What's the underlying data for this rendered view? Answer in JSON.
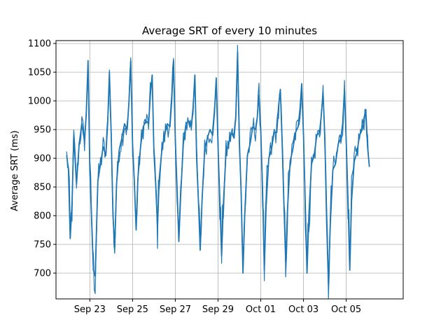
{
  "chart_data": {
    "type": "line",
    "title": "Average SRT of every 10 minutes",
    "xlabel": "",
    "ylabel": "Average SRT (ms)",
    "x_type": "date",
    "xlim": [
      "2023-09-21T10:00",
      "2023-10-07T16:00"
    ],
    "ylim": [
      655,
      1105
    ],
    "x_ticks": [
      {
        "date": "2023-09-23",
        "label": "Sep 23"
      },
      {
        "date": "2023-09-25",
        "label": "Sep 25"
      },
      {
        "date": "2023-09-27",
        "label": "Sep 27"
      },
      {
        "date": "2023-09-29",
        "label": "Sep 29"
      },
      {
        "date": "2023-10-01",
        "label": "Oct 01"
      },
      {
        "date": "2023-10-03",
        "label": "Oct 03"
      },
      {
        "date": "2023-10-05",
        "label": "Oct 05"
      }
    ],
    "y_ticks": [
      700,
      750,
      800,
      850,
      900,
      950,
      1000,
      1050,
      1100
    ],
    "grid": true,
    "series_color": "#1f77b4",
    "series": [
      {
        "x": [
          "2023-09-21T22:00",
          "2023-09-22T00:00",
          "2023-09-22T02:00",
          "2023-09-22T04:00",
          "2023-09-22T06:00",
          "2023-09-22T09:00",
          "2023-09-22T12:00",
          "2023-09-22T15:00",
          "2023-09-22T18:00",
          "2023-09-22T20:00",
          "2023-09-22T22:00",
          "2023-09-23T00:00",
          "2023-09-23T02:00",
          "2023-09-23T04:00",
          "2023-09-23T06:00",
          "2023-09-23T09:00",
          "2023-09-23T12:00",
          "2023-09-23T15:00",
          "2023-09-23T18:00",
          "2023-09-23T20:00",
          "2023-09-23T22:00",
          "2023-09-24T00:00",
          "2023-09-24T02:00",
          "2023-09-24T04:00",
          "2023-09-24T06:00",
          "2023-09-24T09:00",
          "2023-09-24T12:00",
          "2023-09-24T15:00",
          "2023-09-24T18:00",
          "2023-09-24T20:00",
          "2023-09-24T22:00",
          "2023-09-25T00:00",
          "2023-09-25T02:00",
          "2023-09-25T04:00",
          "2023-09-25T06:00",
          "2023-09-25T09:00",
          "2023-09-25T12:00",
          "2023-09-25T15:00",
          "2023-09-25T18:00",
          "2023-09-25T20:00",
          "2023-09-25T22:00",
          "2023-09-26T00:00",
          "2023-09-26T02:00",
          "2023-09-26T04:00",
          "2023-09-26T06:00",
          "2023-09-26T09:00",
          "2023-09-26T12:00",
          "2023-09-26T15:00",
          "2023-09-26T18:00",
          "2023-09-26T20:00",
          "2023-09-26T22:00",
          "2023-09-27T00:00",
          "2023-09-27T02:00",
          "2023-09-27T04:00",
          "2023-09-27T06:00",
          "2023-09-27T09:00",
          "2023-09-27T12:00",
          "2023-09-27T15:00",
          "2023-09-27T18:00",
          "2023-09-27T20:00",
          "2023-09-27T22:00",
          "2023-09-28T00:00",
          "2023-09-28T02:00",
          "2023-09-28T04:00",
          "2023-09-28T06:00",
          "2023-09-28T09:00",
          "2023-09-28T12:00",
          "2023-09-28T15:00",
          "2023-09-28T18:00",
          "2023-09-28T20:00",
          "2023-09-28T22:00",
          "2023-09-29T00:00",
          "2023-09-29T02:00",
          "2023-09-29T04:00",
          "2023-09-29T06:00",
          "2023-09-29T09:00",
          "2023-09-29T12:00",
          "2023-09-29T15:00",
          "2023-09-29T18:00",
          "2023-09-29T20:00",
          "2023-09-29T22:00",
          "2023-09-30T00:00",
          "2023-09-30T02:00",
          "2023-09-30T04:00",
          "2023-09-30T06:00",
          "2023-09-30T09:00",
          "2023-09-30T12:00",
          "2023-09-30T15:00",
          "2023-09-30T18:00",
          "2023-09-30T20:00",
          "2023-09-30T22:00",
          "2023-10-01T00:00",
          "2023-10-01T02:00",
          "2023-10-01T04:00",
          "2023-10-01T06:00",
          "2023-10-01T09:00",
          "2023-10-01T12:00",
          "2023-10-01T15:00",
          "2023-10-01T18:00",
          "2023-10-01T20:00",
          "2023-10-01T22:00",
          "2023-10-02T00:00",
          "2023-10-02T02:00",
          "2023-10-02T04:00",
          "2023-10-02T06:00",
          "2023-10-02T09:00",
          "2023-10-02T12:00",
          "2023-10-02T15:00",
          "2023-10-02T18:00",
          "2023-10-02T20:00",
          "2023-10-02T22:00",
          "2023-10-03T00:00",
          "2023-10-03T02:00",
          "2023-10-03T04:00",
          "2023-10-03T06:00",
          "2023-10-03T09:00",
          "2023-10-03T12:00",
          "2023-10-03T15:00",
          "2023-10-03T18:00",
          "2023-10-03T20:00",
          "2023-10-03T22:00",
          "2023-10-04T00:00",
          "2023-10-04T02:00",
          "2023-10-04T04:00",
          "2023-10-04T06:00",
          "2023-10-04T09:00",
          "2023-10-04T12:00",
          "2023-10-04T15:00",
          "2023-10-04T18:00",
          "2023-10-04T20:00",
          "2023-10-04T22:00",
          "2023-10-05T00:00",
          "2023-10-05T02:00",
          "2023-10-05T04:00",
          "2023-10-05T06:00",
          "2023-10-05T09:00",
          "2023-10-05T12:00",
          "2023-10-05T15:00",
          "2023-10-05T18:00",
          "2023-10-05T20:00",
          "2023-10-05T22:00",
          "2023-10-06T00:00",
          "2023-10-06T02:00"
        ],
        "y": [
          905,
          880,
          760,
          820,
          940,
          855,
          925,
          960,
          930,
          975,
          1070,
          880,
          795,
          705,
          695,
          860,
          890,
          920,
          905,
          960,
          1050,
          940,
          800,
          745,
          855,
          915,
          935,
          960,
          950,
          1000,
          1070,
          925,
          860,
          775,
          865,
          920,
          955,
          965,
          960,
          1010,
          1045,
          910,
          855,
          780,
          865,
          915,
          940,
          960,
          955,
          1000,
          1070,
          935,
          845,
          755,
          835,
          925,
          960,
          965,
          955,
          990,
          1045,
          900,
          825,
          740,
          825,
          915,
          935,
          950,
          940,
          980,
          1040,
          920,
          830,
          730,
          820,
          910,
          925,
          945,
          935,
          975,
          1085,
          930,
          840,
          700,
          800,
          905,
          925,
          955,
          950,
          970,
          1010,
          950,
          845,
          705,
          815,
          900,
          915,
          945,
          945,
          990,
          1020,
          930,
          820,
          720,
          810,
          895,
          915,
          945,
          955,
          985,
          1030,
          940,
          820,
          700,
          800,
          890,
          905,
          940,
          945,
          975,
          1015,
          935,
          790,
          680,
          780,
          880,
          890,
          925,
          935,
          960,
          1020,
          930,
          830,
          705,
          825,
          895,
          910,
          940,
          950,
          970,
          985,
          920,
          885
        ]
      }
    ]
  }
}
